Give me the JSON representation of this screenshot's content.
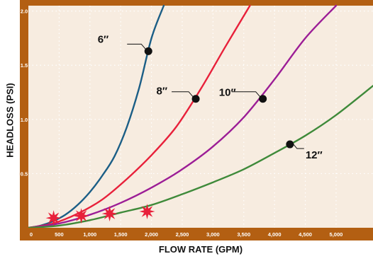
{
  "chart_data": {
    "type": "line",
    "xlabel": "FLOW RATE (GPM)",
    "ylabel": "HEADLOSS (PSI)",
    "xlim": [
      0,
      5600
    ],
    "ylim": [
      0,
      2.05
    ],
    "x_ticks": [
      {
        "value": 0,
        "label": "0"
      },
      {
        "value": 500,
        "label": "500"
      },
      {
        "value": 1000,
        "label": "1,000"
      },
      {
        "value": 1500,
        "label": "1,500"
      },
      {
        "value": 2000,
        "label": "2,000"
      },
      {
        "value": 2500,
        "label": "2,500"
      },
      {
        "value": 3000,
        "label": "3,000"
      },
      {
        "value": 3500,
        "label": "3,500"
      },
      {
        "value": 4000,
        "label": "4,000"
      },
      {
        "value": 4500,
        "label": "4,500"
      },
      {
        "value": 5000,
        "label": "5,000"
      }
    ],
    "y_ticks": [
      {
        "value": 0.5,
        "label": "0.5"
      },
      {
        "value": 1.0,
        "label": "1.0"
      },
      {
        "value": 1.5,
        "label": "1.5"
      },
      {
        "value": 2.0,
        "label": "2.0"
      }
    ],
    "grid": true,
    "series": [
      {
        "name": "6″",
        "color": "#1b5e86",
        "x": [
          0,
          200,
          400,
          600,
          800,
          1000,
          1200,
          1400,
          1600,
          1800,
          2000,
          2200
        ],
        "y": [
          0,
          0.02,
          0.06,
          0.12,
          0.21,
          0.33,
          0.48,
          0.66,
          0.93,
          1.29,
          1.75,
          2.05
        ],
        "marker": {
          "x": 1950,
          "y": 1.63
        }
      },
      {
        "name": "8″",
        "color": "#e8203a",
        "x": [
          0,
          400,
          800,
          1200,
          1600,
          2000,
          2400,
          2800,
          3200,
          3600
        ],
        "y": [
          0,
          0.04,
          0.13,
          0.26,
          0.45,
          0.67,
          0.93,
          1.28,
          1.67,
          2.05
        ],
        "marker": {
          "x": 2720,
          "y": 1.19
        }
      },
      {
        "name": "10″",
        "color": "#9c1d96",
        "x": [
          0,
          500,
          1000,
          1500,
          2000,
          2500,
          3000,
          3500,
          4000,
          4500,
          5000
        ],
        "y": [
          0,
          0.04,
          0.12,
          0.23,
          0.37,
          0.54,
          0.75,
          1.02,
          1.37,
          1.75,
          2.05
        ],
        "marker": {
          "x": 3810,
          "y": 1.19
        }
      },
      {
        "name": "12″",
        "color": "#3f8a3a",
        "x": [
          0,
          500,
          1000,
          1500,
          2000,
          2500,
          3000,
          3500,
          4000,
          4500,
          5000,
          5600
        ],
        "y": [
          0,
          0.02,
          0.07,
          0.14,
          0.21,
          0.31,
          0.42,
          0.54,
          0.69,
          0.85,
          1.04,
          1.31
        ],
        "marker": {
          "x": 4250,
          "y": 0.77
        }
      }
    ],
    "stars": [
      {
        "x": 410,
        "y": 0.09
      },
      {
        "x": 860,
        "y": 0.11
      },
      {
        "x": 1320,
        "y": 0.13
      },
      {
        "x": 1930,
        "y": 0.15
      }
    ],
    "colors": {
      "frame": "#b35f12",
      "plot_background": "#f7ece0",
      "grid": "#ffffff",
      "star": "#e8203a",
      "marker": "#111111"
    }
  }
}
